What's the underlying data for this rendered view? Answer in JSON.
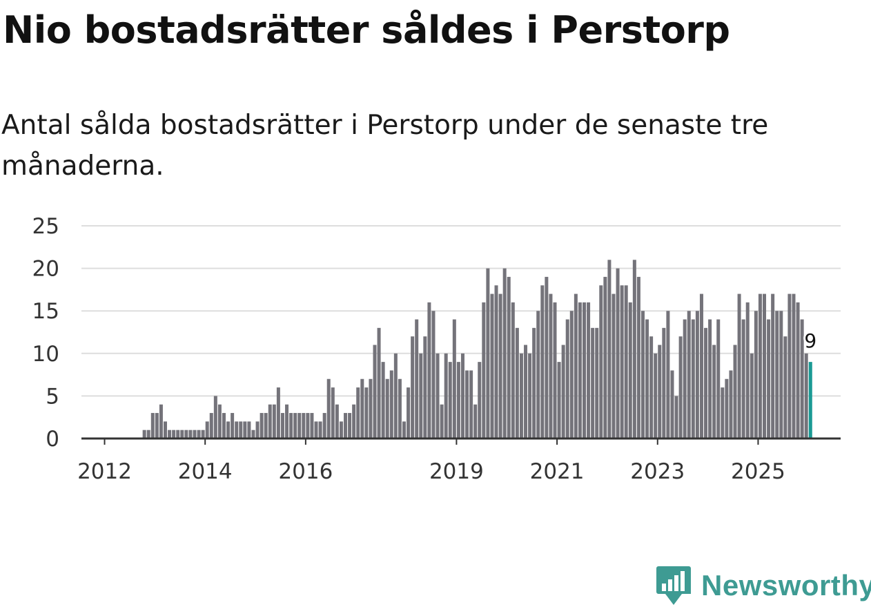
{
  "title": "Nio bostadsrätter såldes i Perstorp",
  "subtitle": "Antal sålda bostadsrätter i Perstorp under de senaste tre månaderna.",
  "brand": {
    "name": "Newsworthy",
    "color": "#3e9b93",
    "logo_icon": "newsworthy-logo-icon"
  },
  "colors": {
    "bar": "#74737a",
    "highlight": "#1a9a94",
    "grid": "#dddddd",
    "axis": "#333333"
  },
  "chart_data": {
    "type": "bar",
    "title": "",
    "xlabel": "",
    "ylabel": "",
    "ylim": [
      0,
      25
    ],
    "yticks": [
      0,
      5,
      10,
      15,
      20,
      25
    ],
    "grid": true,
    "x_start": "2011-07",
    "x_tick_labels": [
      {
        "label": "2012",
        "year": 2012
      },
      {
        "label": "2014",
        "year": 2014
      },
      {
        "label": "2016",
        "year": 2016
      },
      {
        "label": "2019",
        "year": 2019
      },
      {
        "label": "2021",
        "year": 2021
      },
      {
        "label": "2023",
        "year": 2023
      },
      {
        "label": "2025",
        "year": 2025
      }
    ],
    "values": [
      0,
      0,
      0,
      0,
      0,
      0,
      0,
      0,
      0,
      0,
      0,
      0,
      0,
      0,
      0,
      1,
      1,
      3,
      3,
      4,
      2,
      1,
      1,
      1,
      1,
      1,
      1,
      1,
      1,
      1,
      2,
      3,
      5,
      4,
      3,
      2,
      3,
      2,
      2,
      2,
      2,
      1,
      2,
      3,
      3,
      4,
      4,
      6,
      3,
      4,
      3,
      3,
      3,
      3,
      3,
      3,
      2,
      2,
      3,
      7,
      6,
      4,
      2,
      3,
      3,
      4,
      6,
      7,
      6,
      7,
      11,
      13,
      9,
      7,
      8,
      10,
      7,
      2,
      6,
      12,
      14,
      10,
      12,
      16,
      15,
      10,
      4,
      10,
      9,
      14,
      9,
      10,
      8,
      8,
      4,
      9,
      16,
      20,
      17,
      18,
      17,
      20,
      19,
      16,
      13,
      10,
      11,
      10,
      13,
      15,
      18,
      19,
      17,
      16,
      9,
      11,
      14,
      15,
      17,
      16,
      16,
      16,
      13,
      13,
      18,
      19,
      21,
      17,
      20,
      18,
      18,
      16,
      21,
      19,
      15,
      14,
      12,
      10,
      11,
      13,
      15,
      8,
      5,
      12,
      14,
      15,
      14,
      15,
      17,
      13,
      14,
      11,
      14,
      6,
      7,
      8,
      11,
      17,
      14,
      16,
      10,
      15,
      17,
      17,
      14,
      17,
      15,
      15,
      12,
      17,
      17,
      16,
      14,
      10,
      9
    ],
    "highlight_last": true,
    "annotation": {
      "text": "9",
      "target": "last"
    }
  }
}
